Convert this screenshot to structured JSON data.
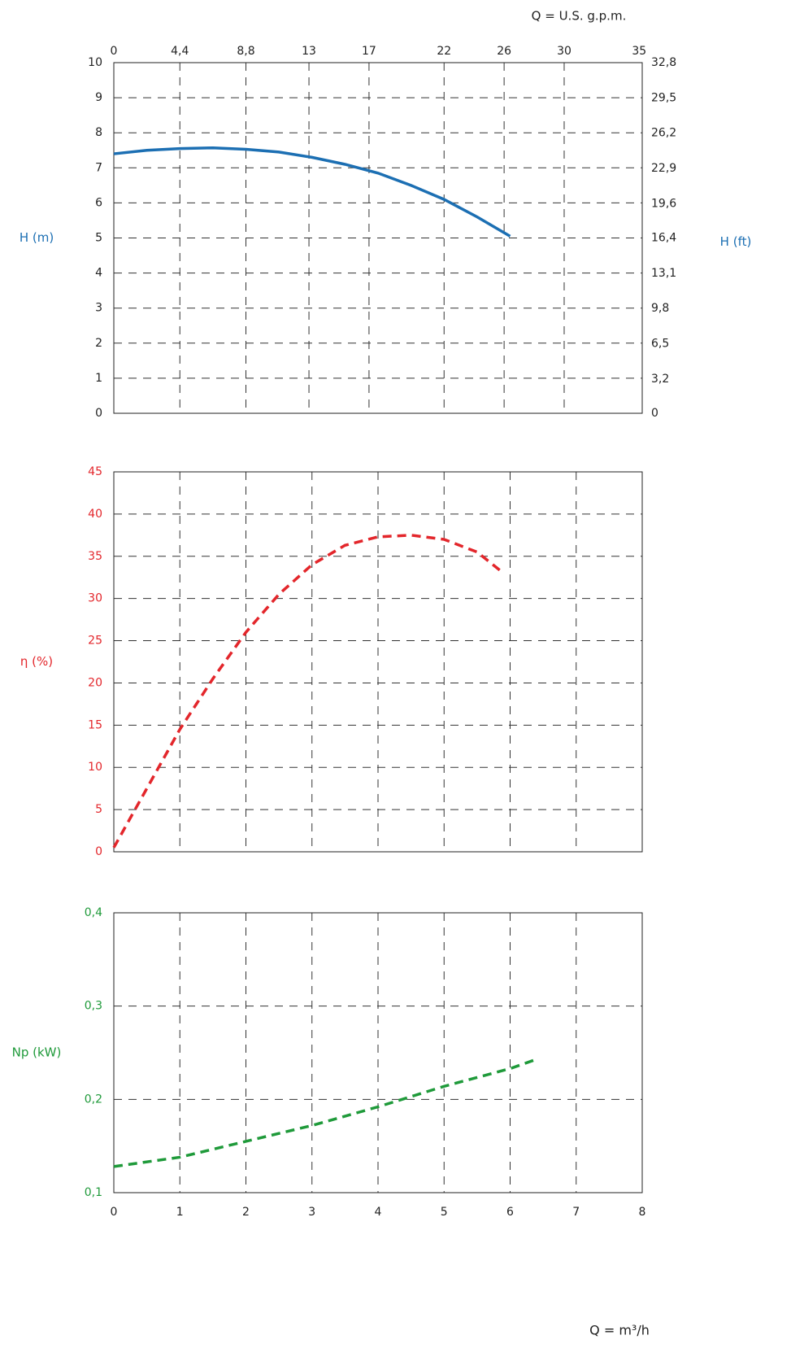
{
  "chart_data": [
    {
      "type": "line",
      "ylabel": "H (m)",
      "y2label": "H (ft)",
      "x2label": "Q = U.S. g.p.m.",
      "label_color": "#1c6fb3",
      "tick_color": "#222222",
      "grid": true,
      "xlim": [
        0,
        8
      ],
      "x2lim": [
        0,
        35.2
      ],
      "x2ticks": [
        0,
        {
          "value": 4.4,
          "label": "4,4"
        },
        {
          "value": 8.8,
          "label": "8,8"
        },
        13,
        17,
        22,
        26,
        30,
        35
      ],
      "ylim": [
        0,
        10
      ],
      "yticks": [
        0,
        1,
        2,
        3,
        4,
        5,
        6,
        7,
        8,
        9,
        10
      ],
      "y2lim": [
        0,
        32.8
      ],
      "y2ticks": [
        0,
        {
          "value": 3.2,
          "label": "3,2"
        },
        {
          "value": 6.5,
          "label": "6,5"
        },
        {
          "value": 9.8,
          "label": "9,8"
        },
        {
          "value": 13.1,
          "label": "13,1"
        },
        {
          "value": 16.4,
          "label": "16,4"
        },
        {
          "value": 19.6,
          "label": "19,6"
        },
        {
          "value": 22.9,
          "label": "22,9"
        },
        {
          "value": 26.2,
          "label": "26,2"
        },
        {
          "value": 29.5,
          "label": "29,5"
        },
        {
          "value": 32.8,
          "label": "32,8"
        }
      ],
      "series": [
        {
          "color": "#1c6fb3",
          "dashed": false,
          "x": [
            0,
            0.5,
            1,
            1.5,
            2,
            2.5,
            3,
            3.5,
            4,
            4.5,
            5,
            5.5,
            6
          ],
          "values": [
            7.4,
            7.5,
            7.55,
            7.57,
            7.53,
            7.45,
            7.3,
            7.1,
            6.85,
            6.5,
            6.1,
            5.6,
            5.05
          ]
        }
      ]
    },
    {
      "type": "line",
      "ylabel": "η (%)",
      "label_color": "#e3262b",
      "tick_color": "#e3262b",
      "grid": true,
      "xlim": [
        0,
        8
      ],
      "xticks": [
        0,
        1,
        2,
        3,
        4,
        5,
        6,
        7,
        8
      ],
      "show_xtick_labels": false,
      "ylim": [
        0,
        45
      ],
      "yticks": [
        0,
        5,
        10,
        15,
        20,
        25,
        30,
        35,
        40,
        45
      ],
      "series": [
        {
          "color": "#e3262b",
          "dashed": true,
          "x": [
            0,
            0.5,
            1,
            1.5,
            2,
            2.5,
            3,
            3.5,
            4,
            4.5,
            5,
            5.5,
            5.9
          ],
          "values": [
            0.5,
            7.5,
            14.5,
            20.5,
            26,
            30.5,
            34,
            36.3,
            37.3,
            37.5,
            37,
            35.5,
            33
          ]
        }
      ]
    },
    {
      "type": "line",
      "ylabel": "Np (kW)",
      "xlabel": "Q = m³/h",
      "label_color": "#1f9a3a",
      "tick_color": "#1f9a3a",
      "grid": true,
      "xlim": [
        0,
        8
      ],
      "xticks": [
        0,
        1,
        2,
        3,
        4,
        5,
        6,
        7,
        8
      ],
      "show_xtick_labels": true,
      "ylim": [
        0.1,
        0.4
      ],
      "yticks": [
        {
          "value": 0.1,
          "label": "0,1"
        },
        {
          "value": 0.2,
          "label": "0,2"
        },
        {
          "value": 0.3,
          "label": "0,3"
        },
        {
          "value": 0.4,
          "label": "0,4"
        }
      ],
      "series": [
        {
          "color": "#1f9a3a",
          "dashed": true,
          "x": [
            0,
            1,
            2,
            3,
            4,
            5,
            6,
            6.4
          ],
          "values": [
            0.128,
            0.138,
            0.155,
            0.172,
            0.192,
            0.214,
            0.233,
            0.243
          ]
        }
      ]
    }
  ]
}
